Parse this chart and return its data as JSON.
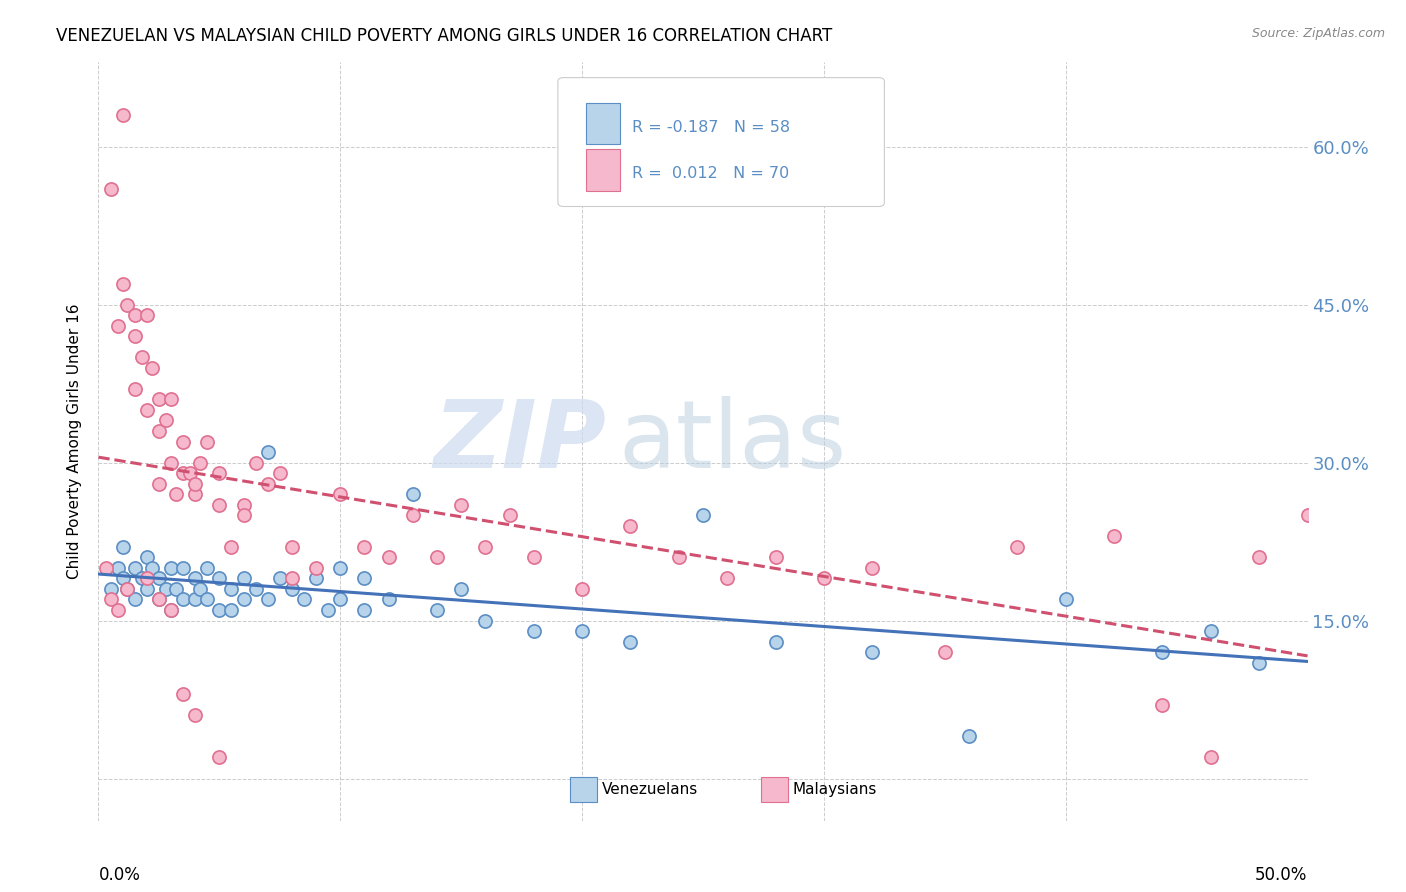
{
  "title": "VENEZUELAN VS MALAYSIAN CHILD POVERTY AMONG GIRLS UNDER 16 CORRELATION CHART",
  "source": "Source: ZipAtlas.com",
  "ylabel": "Child Poverty Among Girls Under 16",
  "ytick_positions": [
    0.0,
    0.15,
    0.3,
    0.45,
    0.6
  ],
  "ytick_labels": [
    "",
    "15.0%",
    "30.0%",
    "45.0%",
    "60.0%"
  ],
  "xtick_positions": [
    0.0,
    0.1,
    0.2,
    0.3,
    0.4,
    0.5
  ],
  "xlim": [
    0.0,
    0.5
  ],
  "ylim": [
    -0.04,
    0.68
  ],
  "watermark_zip": "ZIP",
  "watermark_atlas": "atlas",
  "legend_blue_R": "R = -0.187",
  "legend_blue_N": "N = 58",
  "legend_pink_R": "R =  0.012",
  "legend_pink_N": "N = 70",
  "venezuelan_fill": "#b8d4ea",
  "malaysian_fill": "#f5b8cc",
  "venezuelan_edge": "#5b8ec4",
  "malaysian_edge": "#e07090",
  "venezuelan_line": "#4472b8",
  "malaysian_line": "#d05070",
  "background_color": "#ffffff",
  "grid_color": "#cccccc",
  "blue_x": [
    0.005,
    0.008,
    0.01,
    0.01,
    0.012,
    0.015,
    0.015,
    0.018,
    0.02,
    0.02,
    0.022,
    0.025,
    0.025,
    0.028,
    0.03,
    0.03,
    0.032,
    0.035,
    0.035,
    0.04,
    0.04,
    0.042,
    0.045,
    0.045,
    0.05,
    0.05,
    0.055,
    0.055,
    0.06,
    0.06,
    0.065,
    0.07,
    0.07,
    0.075,
    0.08,
    0.085,
    0.09,
    0.095,
    0.1,
    0.1,
    0.11,
    0.11,
    0.12,
    0.13,
    0.14,
    0.15,
    0.16,
    0.18,
    0.2,
    0.22,
    0.25,
    0.28,
    0.32,
    0.36,
    0.4,
    0.44,
    0.46,
    0.48
  ],
  "blue_y": [
    0.18,
    0.2,
    0.19,
    0.22,
    0.18,
    0.2,
    0.17,
    0.19,
    0.21,
    0.18,
    0.2,
    0.17,
    0.19,
    0.18,
    0.2,
    0.16,
    0.18,
    0.2,
    0.17,
    0.19,
    0.17,
    0.18,
    0.2,
    0.17,
    0.19,
    0.16,
    0.18,
    0.16,
    0.19,
    0.17,
    0.18,
    0.31,
    0.17,
    0.19,
    0.18,
    0.17,
    0.19,
    0.16,
    0.2,
    0.17,
    0.19,
    0.16,
    0.17,
    0.27,
    0.16,
    0.18,
    0.15,
    0.14,
    0.14,
    0.13,
    0.25,
    0.13,
    0.12,
    0.04,
    0.17,
    0.12,
    0.14,
    0.11
  ],
  "pink_x": [
    0.003,
    0.005,
    0.008,
    0.01,
    0.01,
    0.012,
    0.015,
    0.015,
    0.015,
    0.018,
    0.02,
    0.02,
    0.022,
    0.025,
    0.025,
    0.025,
    0.028,
    0.03,
    0.03,
    0.032,
    0.035,
    0.035,
    0.038,
    0.04,
    0.04,
    0.042,
    0.045,
    0.05,
    0.05,
    0.055,
    0.06,
    0.06,
    0.065,
    0.07,
    0.075,
    0.08,
    0.09,
    0.1,
    0.11,
    0.12,
    0.13,
    0.14,
    0.15,
    0.16,
    0.17,
    0.18,
    0.2,
    0.22,
    0.24,
    0.26,
    0.28,
    0.3,
    0.32,
    0.35,
    0.38,
    0.42,
    0.44,
    0.46,
    0.48,
    0.5,
    0.005,
    0.008,
    0.012,
    0.02,
    0.025,
    0.03,
    0.035,
    0.04,
    0.05,
    0.08
  ],
  "pink_y": [
    0.2,
    0.56,
    0.43,
    0.63,
    0.47,
    0.45,
    0.42,
    0.44,
    0.37,
    0.4,
    0.44,
    0.35,
    0.39,
    0.33,
    0.36,
    0.28,
    0.34,
    0.3,
    0.36,
    0.27,
    0.29,
    0.32,
    0.29,
    0.27,
    0.28,
    0.3,
    0.32,
    0.29,
    0.26,
    0.22,
    0.26,
    0.25,
    0.3,
    0.28,
    0.29,
    0.22,
    0.2,
    0.27,
    0.22,
    0.21,
    0.25,
    0.21,
    0.26,
    0.22,
    0.25,
    0.21,
    0.18,
    0.24,
    0.21,
    0.19,
    0.21,
    0.19,
    0.2,
    0.12,
    0.22,
    0.23,
    0.07,
    0.02,
    0.21,
    0.25,
    0.17,
    0.16,
    0.18,
    0.19,
    0.17,
    0.16,
    0.08,
    0.06,
    0.02,
    0.19
  ]
}
